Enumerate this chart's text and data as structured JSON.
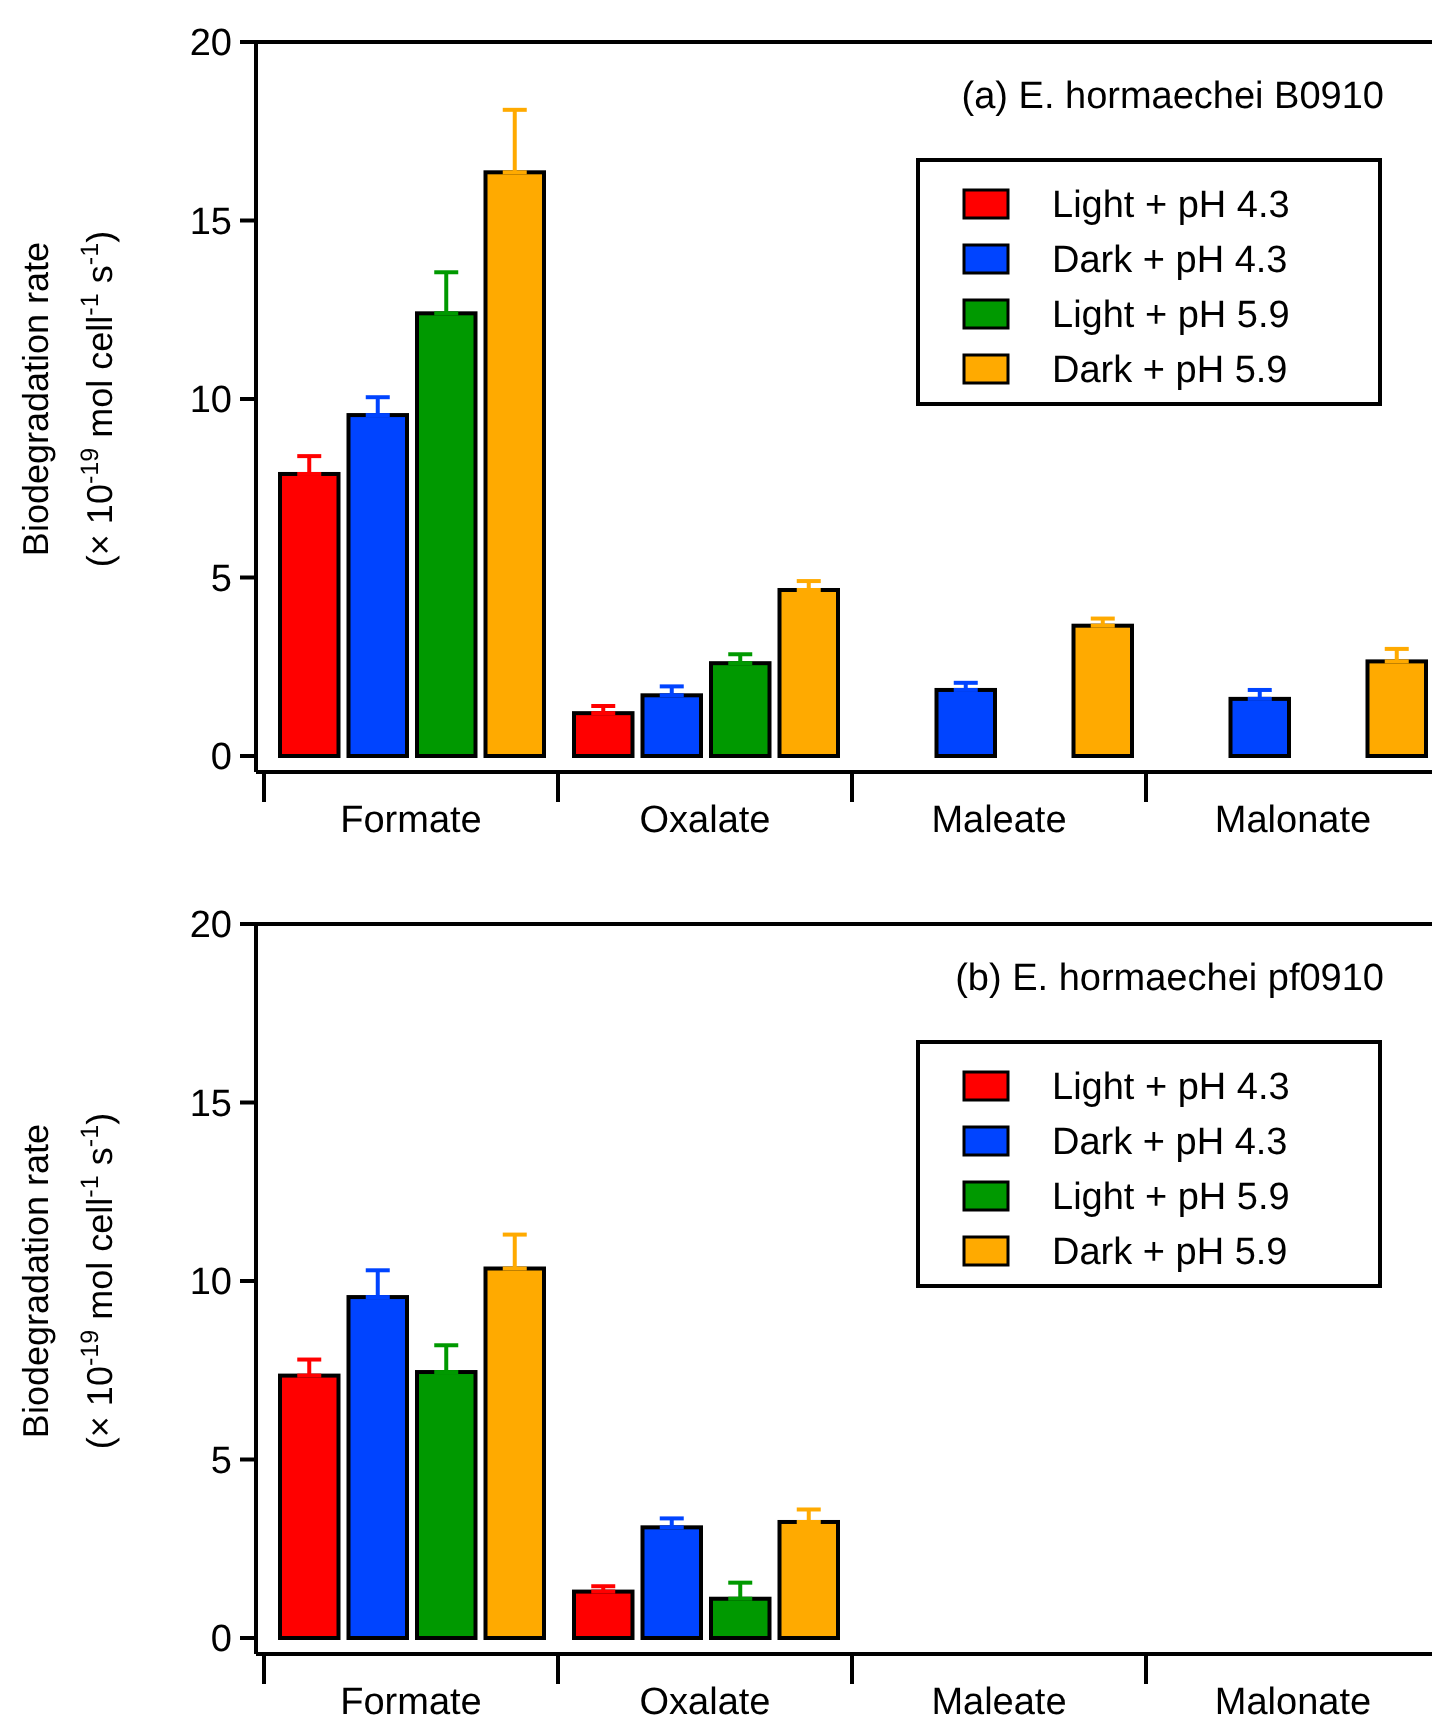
{
  "chart_data": [
    {
      "type": "bar",
      "title": "(a) E. hormaechei B0910",
      "ylabel": "Biodegradation rate (× 10$^{-19}$ mol cell$^{-1}$ s$^{-1}$)",
      "categories": [
        "Formate",
        "Oxalate",
        "Maleate",
        "Malonate"
      ],
      "ylim": [
        0,
        20
      ],
      "yticks": [
        0,
        5,
        10,
        15,
        20
      ],
      "grid": false,
      "legend": "top right",
      "series": [
        {
          "name": "Light + pH 4.3",
          "color": "#ff0000",
          "values": [
            7.9,
            1.2,
            null,
            null
          ],
          "errors": [
            [
              7.9,
              8.4
            ],
            [
              1.2,
              1.4
            ],
            null,
            null
          ]
        },
        {
          "name": "Dark + pH 4.3",
          "color": "#0044ff",
          "values": [
            9.55,
            1.7,
            1.85,
            1.6
          ],
          "errors": [
            [
              9.55,
              10.05
            ],
            [
              1.7,
              1.95
            ],
            [
              1.85,
              2.05
            ],
            [
              1.6,
              1.85
            ]
          ]
        },
        {
          "name": "Light + pH 5.9",
          "color": "#009900",
          "values": [
            12.4,
            2.6,
            null,
            null
          ],
          "errors": [
            [
              12.4,
              13.55
            ],
            [
              2.6,
              2.85
            ],
            null,
            null
          ]
        },
        {
          "name": "Dark + pH 5.9",
          "color": "#ffaa00",
          "values": [
            16.35,
            4.65,
            3.65,
            2.65
          ],
          "errors": [
            [
              16.35,
              18.1
            ],
            [
              4.65,
              4.9
            ],
            [
              3.65,
              3.85
            ],
            [
              2.65,
              3.0
            ]
          ]
        }
      ]
    },
    {
      "type": "bar",
      "title": "(b) E. hormaechei pf0910",
      "ylabel": "Biodegradation rate (× 10$^{-19}$ mol cell$^{-1}$ s$^{-1}$)",
      "categories": [
        "Formate",
        "Oxalate",
        "Maleate",
        "Malonate"
      ],
      "ylim": [
        0,
        20
      ],
      "yticks": [
        0,
        5,
        10,
        15,
        20
      ],
      "grid": false,
      "legend": "top right",
      "series": [
        {
          "name": "Light + pH 4.3",
          "color": "#ff0000",
          "values": [
            7.35,
            1.3,
            null,
            null
          ],
          "errors": [
            [
              7.35,
              7.8
            ],
            [
              1.3,
              1.45
            ],
            null,
            null
          ]
        },
        {
          "name": "Dark + pH 4.3",
          "color": "#0044ff",
          "values": [
            9.55,
            3.1,
            null,
            null
          ],
          "errors": [
            [
              9.55,
              10.3
            ],
            [
              3.1,
              3.35
            ],
            null,
            null
          ]
        },
        {
          "name": "Light + pH 5.9",
          "color": "#009900",
          "values": [
            7.45,
            1.1,
            null,
            null
          ],
          "errors": [
            [
              7.45,
              8.2
            ],
            [
              1.1,
              1.55
            ],
            null,
            null
          ]
        },
        {
          "name": "Dark + pH 5.9",
          "color": "#ffaa00",
          "values": [
            10.35,
            3.25,
            null,
            null
          ],
          "errors": [
            [
              10.35,
              11.3
            ],
            [
              3.25,
              3.6
            ],
            null,
            null
          ]
        }
      ]
    }
  ]
}
